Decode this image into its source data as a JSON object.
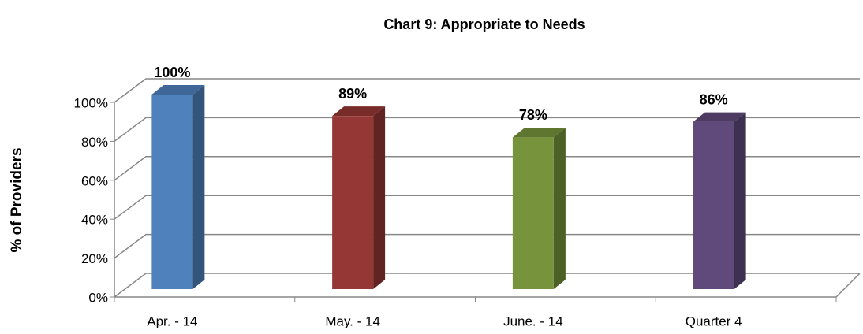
{
  "chart_data": {
    "type": "bar3d",
    "title": "Chart 9: Appropriate to Needs",
    "ylabel": "% of Providers",
    "categories": [
      "Apr. - 14",
      "May. - 14",
      "June. - 14",
      "Quarter 4"
    ],
    "values": [
      100,
      89,
      78,
      86
    ],
    "value_labels": [
      "100%",
      "89%",
      "78%",
      "86%"
    ],
    "colors": [
      "#4f81bd",
      "#953735",
      "#77933c",
      "#604a7b"
    ],
    "ylim": [
      0,
      100
    ],
    "yticks": [
      {
        "value": 0,
        "label": "0%"
      },
      {
        "value": 20,
        "label": "20%"
      },
      {
        "value": 40,
        "label": "40%"
      },
      {
        "value": 60,
        "label": "60%"
      },
      {
        "value": 80,
        "label": "80%"
      },
      {
        "value": 100,
        "label": "100%"
      }
    ],
    "grid": true
  }
}
